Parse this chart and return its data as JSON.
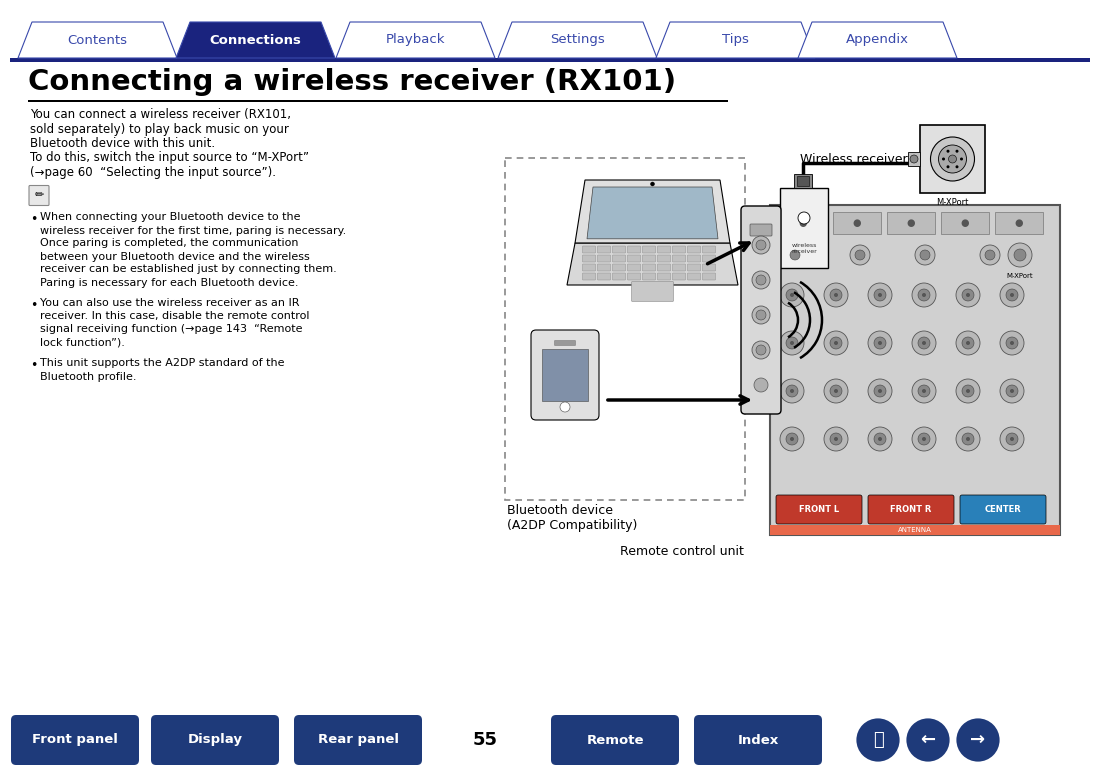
{
  "title": "Connecting a wireless receiver (RX101)",
  "tab_labels": [
    "Contents",
    "Connections",
    "Playback",
    "Settings",
    "Tips",
    "Appendix"
  ],
  "active_tab": 1,
  "tab_color_active": "#1a237e",
  "tab_color_inactive": "#ffffff",
  "tab_border_color": "#3949ab",
  "bottom_buttons": [
    "Front panel",
    "Display",
    "Rear panel",
    "Remote",
    "Index"
  ],
  "page_number": "55",
  "button_color": "#1e3a7a",
  "bg_color": "#ffffff",
  "text_color": "#000000",
  "title_color": "#000000",
  "header_line_color": "#1a237e",
  "body_text": "You can connect a wireless receiver (RX101,\nsold separately) to play back music on your\nBluetooth device with this unit.\nTo do this, switch the input source to “M-XPort”\n(→page 60  “Selecting the input source”).",
  "bullet1": "When connecting your Bluetooth device to the\nwireless receiver for the first time, paring is necessary.\nOnce paring is completed, the communication\nbetween your Bluetooth device and the wireless\nreceiver can be established just by connecting them.\nParing is necessary for each Bluetooth device.",
  "bullet2": "You can also use the wireless receiver as an IR\nreceiver. In this case, disable the remote control\nsignal receiving function (→page 143  “Remote\nlock function”).",
  "bullet3": "This unit supports the A2DP standard of the\nBluetooth profile.",
  "label_wireless": "Wireless receiver (RX101)",
  "label_bluetooth": "Bluetooth device\n(A2DP Compatibility)",
  "label_remote": "Remote control unit"
}
